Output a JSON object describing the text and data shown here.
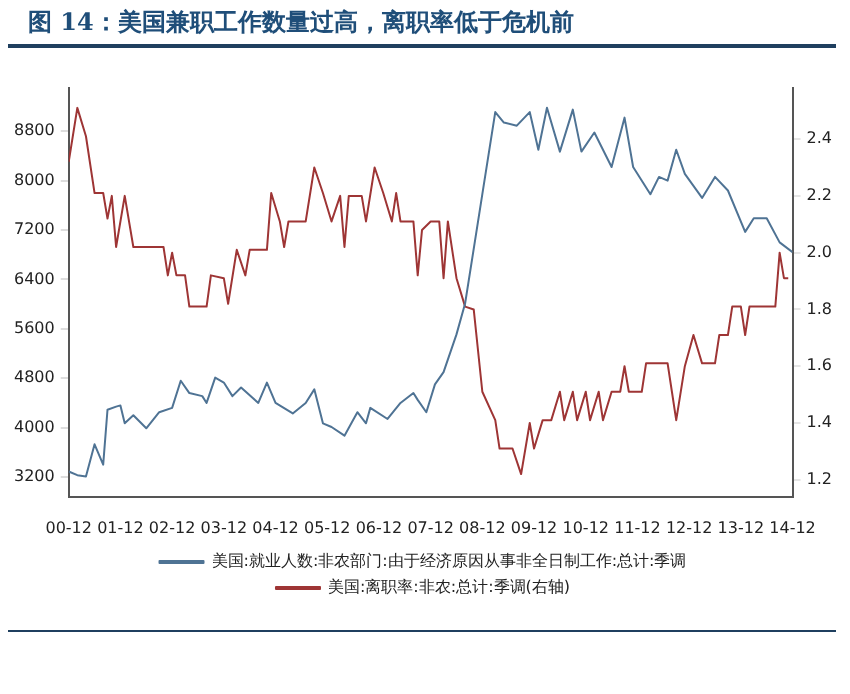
{
  "chart_data": {
    "type": "line",
    "title": "图 14：美国兼职工作数量过高，离职率低于危机前",
    "xlim": [
      "2000-12",
      "2014-12"
    ],
    "xticks": [
      {
        "value": "2000-12",
        "label": "00-12"
      },
      {
        "value": "2001-12",
        "label": "01-12"
      },
      {
        "value": "2002-12",
        "label": "02-12"
      },
      {
        "value": "2003-12",
        "label": "03-12"
      },
      {
        "value": "2004-12",
        "label": "04-12"
      },
      {
        "value": "2005-12",
        "label": "05-12"
      },
      {
        "value": "2006-12",
        "label": "06-12"
      },
      {
        "value": "2007-12",
        "label": "07-12"
      },
      {
        "value": "2008-12",
        "label": "08-12"
      },
      {
        "value": "2009-12",
        "label": "09-12"
      },
      {
        "value": "2010-12",
        "label": "10-12"
      },
      {
        "value": "2011-12",
        "label": "11-12"
      },
      {
        "value": "2012-12",
        "label": "12-12"
      },
      {
        "value": "2013-12",
        "label": "13-12"
      },
      {
        "value": "2014-12",
        "label": "14-12"
      }
    ],
    "ylim": [
      2880,
      9500
    ],
    "yticks": [
      3200,
      4000,
      4800,
      5600,
      6400,
      7200,
      8000,
      8800
    ],
    "y2lim": [
      1.14,
      2.58
    ],
    "y2ticks": [
      1.2,
      1.4,
      1.6,
      1.8,
      {
        "value": 2,
        "label": "2.0"
      },
      2.2,
      2.4
    ],
    "grid": false,
    "legend": "bottom",
    "marker": "none",
    "series": [
      {
        "name": "美国:就业人数:非农部门:由于经济原因从事非全日制工作:总计:季调",
        "color": "#4f7394",
        "x": [
          "2000-12",
          "2001-02",
          "2001-04",
          "2001-06",
          "2001-08",
          "2001-09",
          "2001-11",
          "2001-12",
          "2002-01",
          "2002-03",
          "2002-06",
          "2002-09",
          "2002-12",
          "2003-02",
          "2003-04",
          "2003-07",
          "2003-08",
          "2003-10",
          "2003-12",
          "2004-02",
          "2004-04",
          "2004-08",
          "2004-10",
          "2004-12",
          "2005-04",
          "2005-07",
          "2005-09",
          "2005-11",
          "2006-01",
          "2006-04",
          "2006-07",
          "2006-09",
          "2006-10",
          "2007-02",
          "2007-05",
          "2007-08",
          "2007-09",
          "2007-11",
          "2008-01",
          "2008-03",
          "2008-06",
          "2008-08",
          "2008-12",
          "2009-03",
          "2009-05",
          "2009-08",
          "2009-11",
          "2010-01",
          "2010-03",
          "2010-06",
          "2010-09",
          "2010-11",
          "2011-02",
          "2011-06",
          "2011-09",
          "2011-11",
          "2012-03",
          "2012-05",
          "2012-07",
          "2012-09",
          "2012-11",
          "2013-03",
          "2013-06",
          "2013-09",
          "2014-01",
          "2014-03",
          "2014-06",
          "2014-09",
          "2014-12"
        ],
        "values": [
          3290,
          3230,
          3210,
          3730,
          3400,
          4290,
          4340,
          4360,
          4070,
          4200,
          3990,
          4250,
          4320,
          4760,
          4560,
          4510,
          4400,
          4810,
          4730,
          4510,
          4650,
          4400,
          4730,
          4400,
          4230,
          4400,
          4620,
          4070,
          4010,
          3870,
          4250,
          4070,
          4320,
          4140,
          4400,
          4560,
          4450,
          4250,
          4700,
          4900,
          5510,
          6010,
          7780,
          9110,
          8940,
          8890,
          9110,
          8500,
          9180,
          8470,
          9150,
          8470,
          8780,
          8220,
          9020,
          8220,
          7780,
          8060,
          8000,
          8500,
          8110,
          7720,
          8060,
          7840,
          7170,
          7390,
          7390,
          7000,
          6840
        ]
      },
      {
        "name": "美国:离职率:非农:总计:季调(右轴)",
        "color": "#9e3535",
        "axis": "y2",
        "x": [
          "2000-12",
          "2001-02",
          "2001-04",
          "2001-06",
          "2001-08",
          "2001-09",
          "2001-10",
          "2001-11",
          "2002-01",
          "2002-03",
          "2002-05",
          "2002-10",
          "2002-11",
          "2002-12",
          "2003-01",
          "2003-03",
          "2003-04",
          "2003-08",
          "2003-09",
          "2003-12",
          "2004-01",
          "2004-03",
          "2004-05",
          "2004-06",
          "2004-10",
          "2004-11",
          "2005-01",
          "2005-02",
          "2005-03",
          "2005-07",
          "2005-09",
          "2005-11",
          "2006-01",
          "2006-03",
          "2006-04",
          "2006-05",
          "2006-08",
          "2006-09",
          "2006-11",
          "2007-01",
          "2007-03",
          "2007-04",
          "2007-05",
          "2007-08",
          "2007-09",
          "2007-10",
          "2007-12",
          "2008-02",
          "2008-03",
          "2008-04",
          "2008-06",
          "2008-08",
          "2008-10",
          "2008-12",
          "2009-03",
          "2009-04",
          "2009-07",
          "2009-09",
          "2009-11",
          "2009-12",
          "2010-02",
          "2010-04",
          "2010-06",
          "2010-07",
          "2010-09",
          "2010-10",
          "2010-12",
          "2011-01",
          "2011-03",
          "2011-04",
          "2011-06",
          "2011-08",
          "2011-09",
          "2011-10",
          "2012-01",
          "2012-02",
          "2012-07",
          "2012-08",
          "2012-09",
          "2012-11",
          "2013-01",
          "2013-03",
          "2013-06",
          "2013-07",
          "2013-09",
          "2013-10",
          "2013-12",
          "2014-01",
          "2014-02",
          "2014-08",
          "2014-09",
          "2014-10",
          "2014-11"
        ],
        "values": [
          2.32,
          2.51,
          2.41,
          2.21,
          2.21,
          2.12,
          2.2,
          2.02,
          2.2,
          2.02,
          2.02,
          2.02,
          1.92,
          2.0,
          1.92,
          1.92,
          1.81,
          1.81,
          1.92,
          1.91,
          1.82,
          2.01,
          1.92,
          2.01,
          2.01,
          2.21,
          2.11,
          2.02,
          2.11,
          2.11,
          2.3,
          2.21,
          2.11,
          2.2,
          2.02,
          2.2,
          2.2,
          2.11,
          2.3,
          2.21,
          2.11,
          2.21,
          2.11,
          2.11,
          1.92,
          2.08,
          2.11,
          2.11,
          1.91,
          2.11,
          1.91,
          1.81,
          1.8,
          1.51,
          1.41,
          1.31,
          1.31,
          1.22,
          1.4,
          1.31,
          1.41,
          1.41,
          1.51,
          1.41,
          1.51,
          1.41,
          1.51,
          1.41,
          1.51,
          1.41,
          1.51,
          1.51,
          1.6,
          1.51,
          1.51,
          1.61,
          1.61,
          1.51,
          1.41,
          1.6,
          1.71,
          1.61,
          1.61,
          1.71,
          1.71,
          1.81,
          1.81,
          1.71,
          1.81,
          1.81,
          2.0,
          1.91,
          1.91
        ]
      }
    ]
  }
}
